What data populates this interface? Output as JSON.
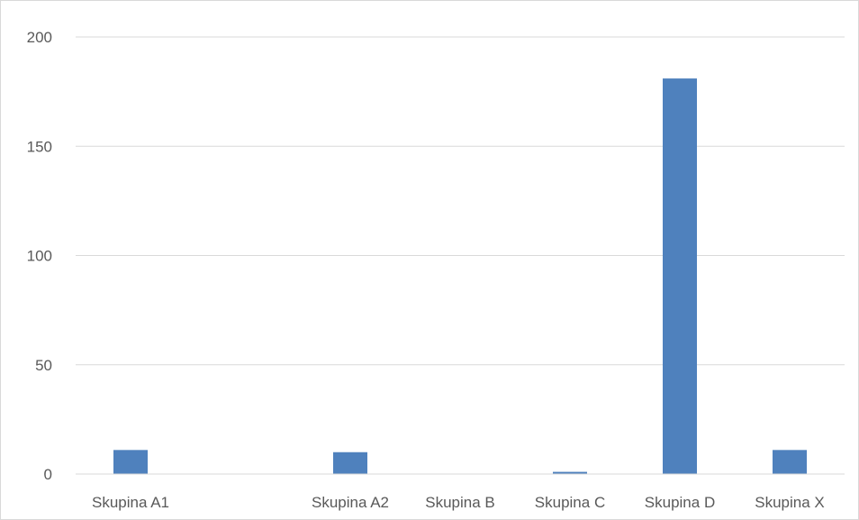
{
  "chart_data": {
    "type": "bar",
    "title": "",
    "xlabel": "",
    "ylabel": "",
    "categories": [
      "Skupina A1",
      "",
      "Skupina A2",
      "Skupina B",
      "Skupina C",
      "Skupina D",
      "Skupina X"
    ],
    "values": [
      11,
      0,
      10,
      0,
      1,
      181,
      11
    ],
    "ylim": [
      0,
      200
    ],
    "yticks": [
      0,
      50,
      100,
      150,
      200
    ],
    "grid": true,
    "legend": "none",
    "bar_color": "#4f81bd",
    "grid_color": "#d9d9d9"
  }
}
